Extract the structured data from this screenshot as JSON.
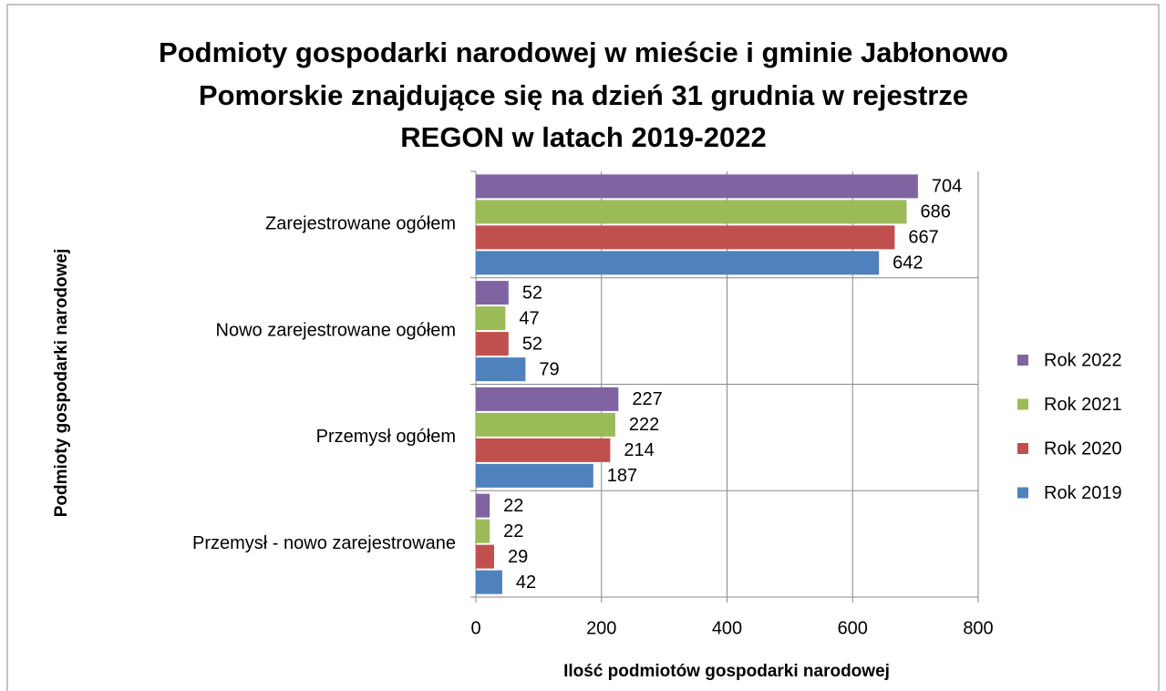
{
  "chart_data": {
    "type": "bar",
    "orientation": "horizontal",
    "title": [
      "Podmioty gospodarki narodowej w mieście i gminie Jabłonowo",
      "Pomorskie znajdujące się na dzień 31 grudnia w rejestrze",
      "REGON w latach 2019-2022"
    ],
    "y_label": "Podmioty gospodarki narodowej",
    "x_label": "Ilość podmiotów gospodarki narodowej",
    "categories": [
      "Zarejestrowane ogółem",
      "Nowo zarejestrowane ogółem",
      "Przemysł ogółem",
      "Przemysł - nowo zarejestrowane"
    ],
    "series": [
      {
        "name": "Rok 2019",
        "color": "#4f81bd",
        "values": [
          642,
          79,
          187,
          42
        ]
      },
      {
        "name": "Rok 2020",
        "color": "#c0504d",
        "values": [
          667,
          52,
          214,
          29
        ]
      },
      {
        "name": "Rok 2021",
        "color": "#9bbb59",
        "values": [
          686,
          47,
          222,
          22
        ]
      },
      {
        "name": "Rok 2022",
        "color": "#8064a2",
        "values": [
          704,
          52,
          227,
          22
        ]
      }
    ],
    "xlim": [
      0,
      800
    ],
    "xticks": [
      0,
      200,
      400,
      600,
      800
    ],
    "grid": true,
    "legend": "right"
  }
}
